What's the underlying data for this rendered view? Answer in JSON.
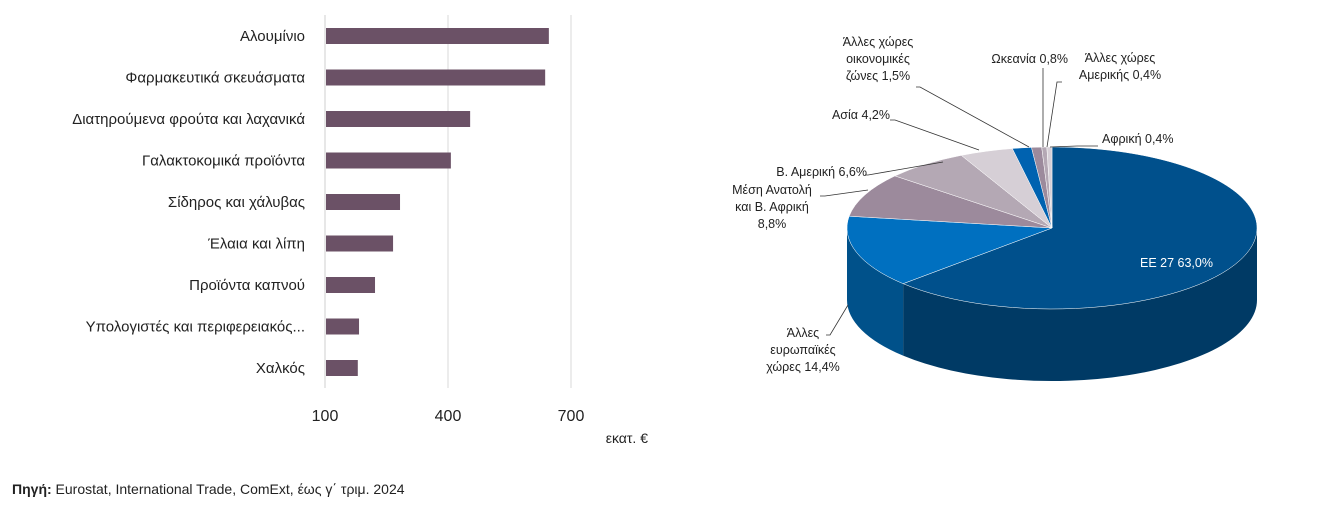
{
  "chart_data": [
    {
      "type": "bar",
      "orientation": "horizontal",
      "categories": [
        "Αλουμίνιο",
        "Φαρμακευτικά σκευάσματα",
        "Διατηρούμενα φρούτα και λαχανικά",
        "Γαλακτοκομικά προϊόντα",
        "Σίδηρος και χάλυβας",
        "Έλαια και λίπη",
        "Προϊόντα καπνού",
        "Υπολογιστές και περιφερειακός...",
        "Χαλκός"
      ],
      "values": [
        646,
        637,
        454,
        407,
        283,
        266,
        222,
        183,
        180
      ],
      "xticks": [
        "100",
        "400",
        "700"
      ],
      "xlim": [
        100,
        700
      ],
      "xlabel": "εκατ. €",
      "grid": true,
      "color": "#6b5166"
    },
    {
      "type": "pie",
      "style": "3d",
      "labels": [
        "ΕΕ 27 63,0%",
        "Άλλες\nευρωπαϊκές\nχώρες 14,4%",
        "Μέση Ανατολή\nκαι Β. Αφρική\n8,8%",
        "Β. Αμερική 6,6%",
        "Ασία 4,2%",
        "Άλλες χώρες\nοικονομικές\nζώνες 1,5%",
        "Ωκεανία 0,8%",
        "Άλλες χώρες\nΑμερικής 0,4%",
        "Αφρική 0,4%"
      ],
      "values": [
        63.0,
        14.4,
        8.8,
        6.6,
        4.2,
        1.5,
        0.8,
        0.4,
        0.4
      ],
      "colors": [
        "#00508c",
        "#0070c0",
        "#9c8a9c",
        "#b4a8b4",
        "#d6cfd6",
        "#0062b0",
        "#9c8a9c",
        "#b4a8b4",
        "#d6cfd6"
      ]
    }
  ],
  "source": {
    "label": "Πηγή:",
    "text": " Eurostat, International Trade, ComExt, έως  γ΄ τριμ. 2024"
  }
}
